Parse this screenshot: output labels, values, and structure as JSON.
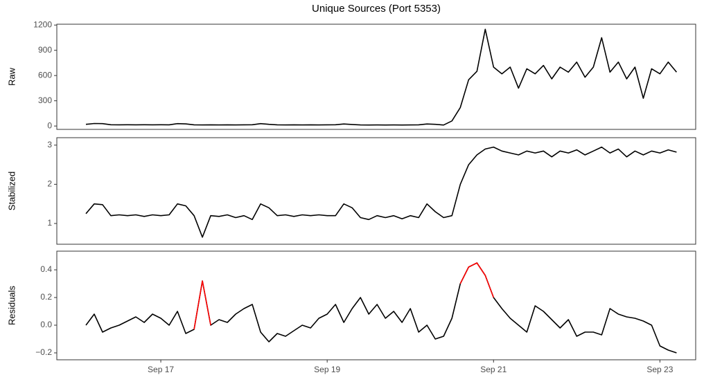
{
  "chart_data": {
    "type": "line",
    "title": "Unique Sources (Port 5353)",
    "x": [
      16.1,
      16.2,
      16.3,
      16.4,
      16.5,
      16.6,
      16.7,
      16.8,
      16.9,
      17.0,
      17.1,
      17.2,
      17.3,
      17.4,
      17.5,
      17.6,
      17.7,
      17.8,
      17.9,
      18.0,
      18.1,
      18.2,
      18.3,
      18.4,
      18.5,
      18.6,
      18.7,
      18.8,
      18.9,
      19.0,
      19.1,
      19.2,
      19.3,
      19.4,
      19.5,
      19.6,
      19.7,
      19.8,
      19.9,
      20.0,
      20.1,
      20.2,
      20.3,
      20.4,
      20.5,
      20.6,
      20.7,
      20.8,
      20.9,
      21.0,
      21.1,
      21.2,
      21.3,
      21.4,
      21.5,
      21.6,
      21.7,
      21.8,
      21.9,
      22.0,
      22.1,
      22.2,
      22.3,
      22.4,
      22.5,
      22.6,
      22.7,
      22.8,
      22.9,
      23.0,
      23.1,
      23.2
    ],
    "xlim": [
      15.75,
      23.43
    ],
    "xticks": [
      {
        "value": 17,
        "label": "Sep 17"
      },
      {
        "value": 19,
        "label": "Sep 19"
      },
      {
        "value": 21,
        "label": "Sep 21"
      },
      {
        "value": 23,
        "label": "Sep 23"
      }
    ],
    "panels": [
      {
        "ylabel": "Raw",
        "ylim": [
          -40,
          1210
        ],
        "yticks": [
          0,
          300,
          600,
          900,
          1200
        ],
        "series": [
          {
            "color": "#000000",
            "values": [
              20,
              30,
              28,
              15,
              14,
              15,
              14,
              15,
              14,
              15,
              14,
              28,
              25,
              14,
              13,
              14,
              13,
              14,
              13,
              14,
              15,
              28,
              20,
              14,
              13,
              14,
              13,
              14,
              13,
              14,
              15,
              24,
              18,
              13,
              12,
              13,
              12,
              13,
              12,
              13,
              14,
              24,
              20,
              12,
              60,
              220,
              550,
              650,
              1150,
              700,
              620,
              700,
              450,
              680,
              620,
              720,
              560,
              700,
              640,
              760,
              580,
              700,
              1050,
              640,
              760,
              560,
              700,
              330,
              680,
              620,
              760,
              640
            ]
          }
        ]
      },
      {
        "ylabel": "Stabilized",
        "ylim": [
          0.47,
          3.19
        ],
        "yticks": [
          1,
          2,
          3
        ],
        "series": [
          {
            "color": "#000000",
            "values": [
              1.25,
              1.5,
              1.48,
              1.2,
              1.22,
              1.2,
              1.22,
              1.18,
              1.22,
              1.2,
              1.22,
              1.5,
              1.45,
              1.2,
              0.65,
              1.2,
              1.18,
              1.22,
              1.15,
              1.2,
              1.1,
              1.5,
              1.4,
              1.2,
              1.22,
              1.18,
              1.22,
              1.2,
              1.22,
              1.2,
              1.2,
              1.5,
              1.4,
              1.15,
              1.1,
              1.2,
              1.15,
              1.2,
              1.12,
              1.2,
              1.15,
              1.5,
              1.3,
              1.15,
              1.2,
              2.0,
              2.5,
              2.75,
              2.9,
              2.95,
              2.85,
              2.8,
              2.75,
              2.85,
              2.8,
              2.85,
              2.7,
              2.85,
              2.8,
              2.88,
              2.75,
              2.85,
              2.95,
              2.8,
              2.9,
              2.7,
              2.85,
              2.75,
              2.85,
              2.8,
              2.88,
              2.82
            ]
          }
        ]
      },
      {
        "ylabel": "Residuals",
        "ylim": [
          -0.25,
          0.535
        ],
        "yticks": [
          {
            "value": -0.2,
            "label": "−0.2"
          },
          {
            "value": 0,
            "label": "0.0"
          },
          0.2,
          0.4
        ],
        "series": [
          {
            "color": "#000000",
            "values": [
              0.0,
              0.08,
              -0.05,
              -0.02,
              0.0,
              0.03,
              0.06,
              0.02,
              0.08,
              0.05,
              0.0,
              0.1,
              -0.06,
              -0.03,
              0.32,
              0.0,
              0.04,
              0.02,
              0.08,
              0.12,
              0.15,
              -0.05,
              -0.12,
              -0.06,
              -0.08,
              -0.04,
              0.0,
              -0.02,
              0.05,
              0.08,
              0.15,
              0.02,
              0.12,
              0.2,
              0.08,
              0.15,
              0.05,
              0.1,
              0.02,
              0.12,
              -0.05,
              0.0,
              -0.1,
              -0.08,
              0.05,
              0.3,
              0.42,
              0.45,
              0.36,
              0.2,
              0.12,
              0.05,
              0.0,
              -0.05,
              0.14,
              0.1,
              0.04,
              -0.02,
              0.04,
              -0.08,
              -0.05,
              -0.05,
              -0.07,
              0.12,
              0.08,
              0.06,
              0.05,
              0.03,
              0.0,
              -0.15,
              -0.18,
              -0.2
            ]
          },
          {
            "color": "#ff0000",
            "values": [
              null,
              null,
              null,
              null,
              null,
              null,
              null,
              null,
              null,
              null,
              null,
              null,
              null,
              -0.03,
              0.32,
              0.0,
              null,
              null,
              null,
              null,
              null,
              null,
              null,
              null,
              null,
              null,
              null,
              null,
              null,
              null,
              null,
              null,
              null,
              null,
              null,
              null,
              null,
              null,
              null,
              null,
              null,
              null,
              null,
              null,
              null,
              0.3,
              0.42,
              0.45,
              0.36,
              0.2,
              null,
              null,
              null,
              null,
              null,
              null,
              null,
              null,
              null,
              null,
              null,
              null,
              null,
              null,
              null,
              null,
              null,
              null,
              null,
              null,
              null,
              null
            ]
          }
        ]
      }
    ]
  }
}
